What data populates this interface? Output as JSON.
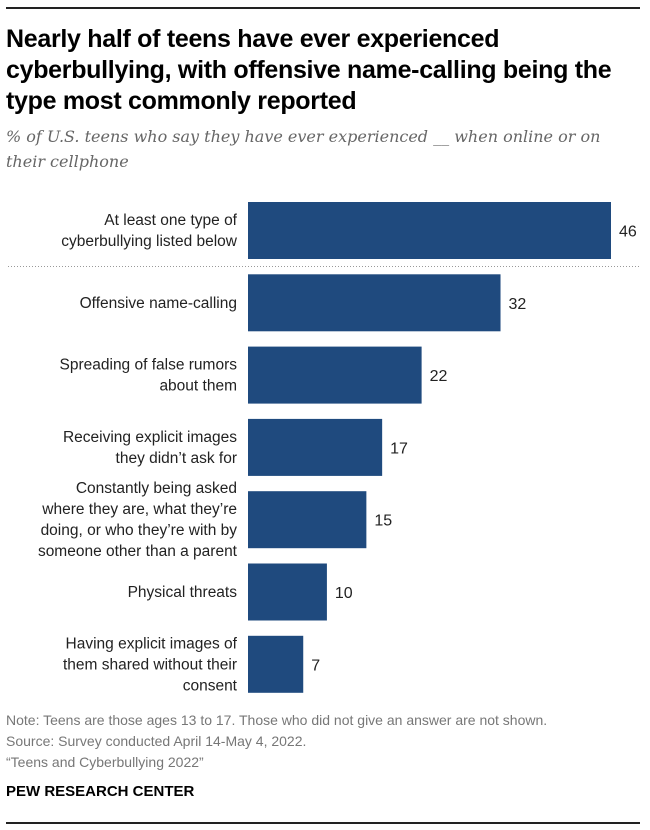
{
  "title": "Nearly half of teens have ever experienced cyberbullying, with offensive name-calling being the type most commonly reported",
  "subtitle": "% of U.S. teens who say they have ever experienced __ when online or on their cellphone",
  "chart_data": {
    "type": "bar",
    "orientation": "horizontal",
    "categories": [
      [
        "At least one type of",
        "cyberbullying listed below"
      ],
      [
        "Offensive name-calling"
      ],
      [
        "Spreading of false rumors",
        "about them"
      ],
      [
        "Receiving explicit images",
        "they didn’t ask for"
      ],
      [
        "Constantly being asked",
        "where they are, what they’re",
        "doing, or who they’re with by",
        "someone other than a parent"
      ],
      [
        "Physical threats"
      ],
      [
        "Having explicit images of",
        "them shared without their",
        "consent"
      ]
    ],
    "values": [
      46,
      32,
      22,
      17,
      15,
      10,
      7
    ],
    "xlim": [
      0,
      46
    ],
    "bar_color": "#1f4a7e",
    "grid": false,
    "separator_after_first": true
  },
  "notes": {
    "note": "Note: Teens are those ages 13 to 17. Those who did not give an answer are not shown.",
    "source": "Source: Survey conducted April 14-May 4, 2022.",
    "report": "“Teens and Cyberbullying 2022”"
  },
  "logo": "PEW RESEARCH CENTER"
}
